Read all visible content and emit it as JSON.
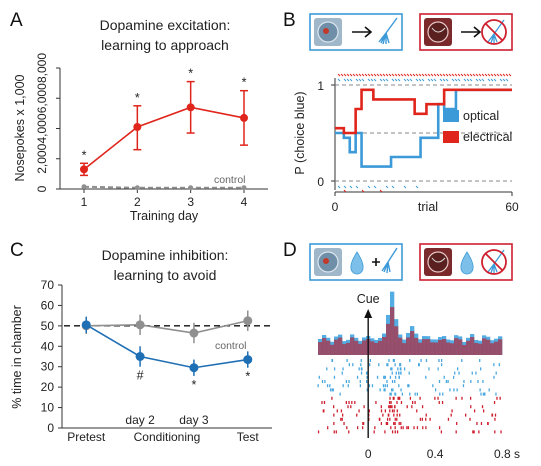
{
  "panels": {
    "A": {
      "letter": "A",
      "title_lines": [
        "Dopamine excitation:",
        "learning to approach"
      ]
    },
    "B": {
      "letter": "B"
    },
    "C": {
      "letter": "C",
      "title_lines": [
        "Dopamine inhibition:",
        "learning to avoid"
      ]
    },
    "D": {
      "letter": "D"
    }
  },
  "colors": {
    "red": "#e0251c",
    "blue": "#3d9ad8",
    "gray": "#8f8f8f",
    "dark_blue": "#1f6fb5",
    "blue_light": "#4aa8e0",
    "red_dark": "#cf2030"
  },
  "chart_data": [
    {
      "id": "A",
      "type": "line",
      "title": "Dopamine excitation: learning to approach",
      "xlabel": "Training day",
      "ylabel": "Nosepokes x 1,000",
      "x": [
        1,
        2,
        3,
        4
      ],
      "xlim": [
        0.55,
        4.45
      ],
      "ylim": [
        0,
        8
      ],
      "yticks": [
        0,
        2,
        4,
        6,
        8
      ],
      "yticklabels": [
        "0",
        "2,000",
        "4,000",
        "6,000",
        "8,000"
      ],
      "series": [
        {
          "name": "",
          "color": "red",
          "values": [
            1.3,
            4.1,
            5.4,
            4.7
          ],
          "err_low": [
            0.9,
            2.6,
            3.7,
            2.9
          ],
          "err_high": [
            1.7,
            5.5,
            7.1,
            6.5
          ],
          "sig": [
            "*",
            "*",
            "*",
            "*"
          ]
        },
        {
          "name": "control",
          "color": "gray",
          "values": [
            0.15,
            0.08,
            0.08,
            0.08
          ],
          "dashed": true
        }
      ],
      "annotations": [
        "control"
      ]
    },
    {
      "id": "B",
      "type": "line",
      "xlabel": "trial",
      "ylabel": "P (choice blue)",
      "xlim": [
        0,
        60
      ],
      "ylim": [
        0,
        1
      ],
      "xticks": [
        0,
        60
      ],
      "yticks": [
        0,
        1
      ],
      "reference_lines": [
        0,
        0.5,
        1
      ],
      "series": [
        {
          "name": "optical",
          "color": "blue",
          "x": [
            1,
            3,
            5,
            7,
            9,
            11,
            13,
            15,
            17,
            19,
            21,
            23,
            25,
            27,
            29,
            31,
            33,
            35,
            37,
            39,
            41,
            43,
            45,
            47,
            49,
            51,
            53,
            55,
            57,
            59
          ],
          "values": [
            0.5,
            0.45,
            0.3,
            0.5,
            0.15,
            0.15,
            0.15,
            0.15,
            0.15,
            0.25,
            0.25,
            0.25,
            0.25,
            0.25,
            0.45,
            0.45,
            0.45,
            0.8,
            0.75,
            0.75,
            0.95,
            0.95,
            0.95,
            0.95,
            0.95,
            0.95,
            0.95,
            0.95,
            0.95,
            0.95
          ]
        },
        {
          "name": "electrical",
          "color": "red",
          "x": [
            1,
            3,
            5,
            7,
            9,
            11,
            13,
            15,
            17,
            19,
            21,
            23,
            25,
            27,
            29,
            31,
            33,
            35,
            37,
            39,
            41,
            43,
            45,
            47,
            49,
            51,
            53,
            55,
            57,
            59
          ],
          "values": [
            0.55,
            0.5,
            0.5,
            0.75,
            0.95,
            0.95,
            0.85,
            0.85,
            0.85,
            0.85,
            0.85,
            0.85,
            0.85,
            0.7,
            0.7,
            0.8,
            0.8,
            0.8,
            0.95,
            0.95,
            0.95,
            0.95,
            0.95,
            0.95,
            0.95,
            0.95,
            0.95,
            0.95,
            0.95,
            0.95
          ]
        }
      ],
      "legend": [
        "optical",
        "electrical"
      ],
      "legend_position": "right"
    },
    {
      "id": "C",
      "type": "line",
      "title": "Dopamine inhibition: learning to avoid",
      "ylabel": "% time in chamber",
      "xlabel": "Conditioning",
      "categories": [
        "Pretest",
        "day 2",
        "day 3",
        "Test"
      ],
      "xlim": [
        0.55,
        4.45
      ],
      "ylim": [
        0,
        70
      ],
      "yticks": [
        0,
        10,
        20,
        30,
        40,
        50,
        60,
        70
      ],
      "reference_line": 50,
      "series": [
        {
          "name": "control",
          "color": "gray",
          "values": [
            50,
            50.5,
            46.5,
            52.5
          ],
          "err": [
            4,
            5,
            5,
            5
          ]
        },
        {
          "name": "",
          "color": "dark_blue",
          "values": [
            50.5,
            35,
            29.5,
            33.5
          ],
          "err": [
            4,
            5,
            4,
            4
          ],
          "sig": [
            "",
            "#",
            "*",
            "*"
          ]
        }
      ],
      "annotations": [
        "control"
      ]
    },
    {
      "id": "D",
      "type": "raster",
      "xlim": [
        -0.3,
        0.8
      ],
      "xticks": [
        0,
        0.4,
        0.8
      ],
      "xticklabels": [
        "0",
        "0.4",
        "0.8 s"
      ],
      "event_label": "Cue",
      "series": [
        {
          "name": "",
          "color": "blue"
        },
        {
          "name": "",
          "color": "red"
        }
      ]
    }
  ]
}
